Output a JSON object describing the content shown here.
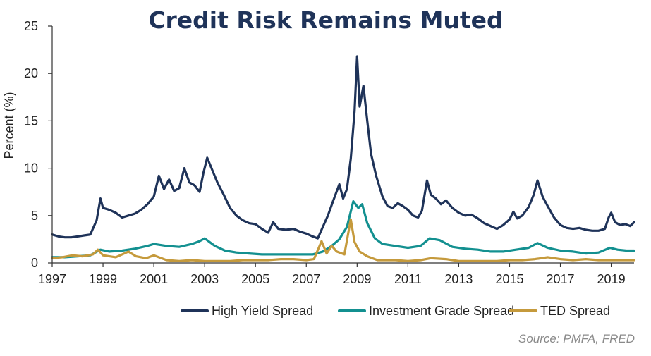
{
  "chart_data": {
    "type": "line",
    "title": "Credit Risk Remains Muted",
    "xlabel": "",
    "ylabel": "Percent (%)",
    "xlim": [
      1997,
      2019.9
    ],
    "ylim": [
      0,
      25
    ],
    "x_ticks": [
      "1997",
      "1999",
      "2001",
      "2003",
      "2005",
      "2007",
      "2009",
      "2011",
      "2013",
      "2015",
      "2017",
      "2019"
    ],
    "y_ticks": [
      "0",
      "5",
      "10",
      "15",
      "20",
      "25"
    ],
    "grid": false,
    "legend_position": "bottom-right",
    "source": "Source: PMFA, FRED",
    "colors": {
      "title": "#1f3359",
      "axis": "#333333"
    },
    "series": [
      {
        "name": "High Yield Spread",
        "color": "#1f3359",
        "points": [
          [
            1997.0,
            3.0
          ],
          [
            1997.25,
            2.8
          ],
          [
            1997.5,
            2.7
          ],
          [
            1997.75,
            2.7
          ],
          [
            1998.0,
            2.8
          ],
          [
            1998.25,
            2.9
          ],
          [
            1998.5,
            3.0
          ],
          [
            1998.75,
            4.5
          ],
          [
            1998.9,
            6.8
          ],
          [
            1999.0,
            5.8
          ],
          [
            1999.25,
            5.6
          ],
          [
            1999.5,
            5.3
          ],
          [
            1999.75,
            4.8
          ],
          [
            2000.0,
            5.0
          ],
          [
            2000.25,
            5.2
          ],
          [
            2000.5,
            5.6
          ],
          [
            2000.75,
            6.2
          ],
          [
            2001.0,
            7.0
          ],
          [
            2001.2,
            9.2
          ],
          [
            2001.4,
            7.8
          ],
          [
            2001.6,
            8.8
          ],
          [
            2001.8,
            7.6
          ],
          [
            2002.0,
            7.9
          ],
          [
            2002.2,
            10.0
          ],
          [
            2002.4,
            8.5
          ],
          [
            2002.6,
            8.2
          ],
          [
            2002.8,
            7.5
          ],
          [
            2002.95,
            9.5
          ],
          [
            2003.1,
            11.1
          ],
          [
            2003.3,
            9.8
          ],
          [
            2003.5,
            8.5
          ],
          [
            2003.75,
            7.2
          ],
          [
            2004.0,
            5.8
          ],
          [
            2004.25,
            5.0
          ],
          [
            2004.5,
            4.5
          ],
          [
            2004.75,
            4.2
          ],
          [
            2005.0,
            4.1
          ],
          [
            2005.25,
            3.6
          ],
          [
            2005.5,
            3.2
          ],
          [
            2005.7,
            4.3
          ],
          [
            2005.9,
            3.6
          ],
          [
            2006.2,
            3.5
          ],
          [
            2006.5,
            3.6
          ],
          [
            2006.75,
            3.3
          ],
          [
            2007.0,
            3.1
          ],
          [
            2007.25,
            2.8
          ],
          [
            2007.45,
            2.6
          ],
          [
            2007.65,
            3.8
          ],
          [
            2007.85,
            5.0
          ],
          [
            2008.05,
            6.5
          ],
          [
            2008.3,
            8.3
          ],
          [
            2008.45,
            6.8
          ],
          [
            2008.6,
            7.8
          ],
          [
            2008.75,
            11.0
          ],
          [
            2008.9,
            16.0
          ],
          [
            2009.0,
            21.8
          ],
          [
            2009.1,
            16.5
          ],
          [
            2009.25,
            18.7
          ],
          [
            2009.4,
            15.0
          ],
          [
            2009.55,
            11.5
          ],
          [
            2009.75,
            9.2
          ],
          [
            2010.0,
            7.0
          ],
          [
            2010.2,
            6.0
          ],
          [
            2010.4,
            5.8
          ],
          [
            2010.6,
            6.3
          ],
          [
            2010.8,
            6.0
          ],
          [
            2011.0,
            5.6
          ],
          [
            2011.2,
            5.0
          ],
          [
            2011.4,
            4.8
          ],
          [
            2011.55,
            5.5
          ],
          [
            2011.75,
            8.7
          ],
          [
            2011.9,
            7.2
          ],
          [
            2012.1,
            6.8
          ],
          [
            2012.3,
            6.2
          ],
          [
            2012.5,
            6.6
          ],
          [
            2012.75,
            5.8
          ],
          [
            2013.0,
            5.3
          ],
          [
            2013.25,
            5.0
          ],
          [
            2013.5,
            5.1
          ],
          [
            2013.75,
            4.7
          ],
          [
            2014.0,
            4.2
          ],
          [
            2014.25,
            3.9
          ],
          [
            2014.5,
            3.6
          ],
          [
            2014.75,
            4.0
          ],
          [
            2015.0,
            4.6
          ],
          [
            2015.15,
            5.4
          ],
          [
            2015.3,
            4.7
          ],
          [
            2015.5,
            5.0
          ],
          [
            2015.75,
            5.9
          ],
          [
            2015.95,
            7.2
          ],
          [
            2016.1,
            8.7
          ],
          [
            2016.3,
            7.0
          ],
          [
            2016.5,
            6.0
          ],
          [
            2016.75,
            4.8
          ],
          [
            2017.0,
            4.0
          ],
          [
            2017.25,
            3.7
          ],
          [
            2017.5,
            3.6
          ],
          [
            2017.75,
            3.7
          ],
          [
            2018.0,
            3.5
          ],
          [
            2018.25,
            3.4
          ],
          [
            2018.5,
            3.4
          ],
          [
            2018.75,
            3.6
          ],
          [
            2018.9,
            4.8
          ],
          [
            2019.0,
            5.3
          ],
          [
            2019.15,
            4.3
          ],
          [
            2019.35,
            4.0
          ],
          [
            2019.55,
            4.1
          ],
          [
            2019.75,
            3.9
          ],
          [
            2019.9,
            4.3
          ]
        ]
      },
      {
        "name": "Investment Grade Spread",
        "color": "#139090",
        "points": [
          [
            1997.0,
            0.6
          ],
          [
            1997.5,
            0.6
          ],
          [
            1998.0,
            0.7
          ],
          [
            1998.5,
            0.8
          ],
          [
            1998.9,
            1.4
          ],
          [
            1999.25,
            1.2
          ],
          [
            1999.75,
            1.3
          ],
          [
            2000.25,
            1.5
          ],
          [
            2000.75,
            1.8
          ],
          [
            2001.0,
            2.0
          ],
          [
            2001.5,
            1.8
          ],
          [
            2002.0,
            1.7
          ],
          [
            2002.5,
            2.0
          ],
          [
            2002.8,
            2.3
          ],
          [
            2003.0,
            2.6
          ],
          [
            2003.4,
            1.8
          ],
          [
            2003.8,
            1.3
          ],
          [
            2004.25,
            1.1
          ],
          [
            2004.75,
            1.0
          ],
          [
            2005.25,
            0.9
          ],
          [
            2005.75,
            0.9
          ],
          [
            2006.25,
            0.9
          ],
          [
            2006.75,
            0.9
          ],
          [
            2007.25,
            0.9
          ],
          [
            2007.65,
            1.2
          ],
          [
            2008.0,
            1.8
          ],
          [
            2008.3,
            2.5
          ],
          [
            2008.6,
            3.8
          ],
          [
            2008.85,
            6.5
          ],
          [
            2009.05,
            5.8
          ],
          [
            2009.2,
            6.2
          ],
          [
            2009.4,
            4.2
          ],
          [
            2009.7,
            2.6
          ],
          [
            2010.0,
            2.0
          ],
          [
            2010.5,
            1.8
          ],
          [
            2011.0,
            1.6
          ],
          [
            2011.5,
            1.8
          ],
          [
            2011.85,
            2.6
          ],
          [
            2012.25,
            2.4
          ],
          [
            2012.75,
            1.7
          ],
          [
            2013.25,
            1.5
          ],
          [
            2013.75,
            1.4
          ],
          [
            2014.25,
            1.2
          ],
          [
            2014.75,
            1.2
          ],
          [
            2015.25,
            1.4
          ],
          [
            2015.75,
            1.6
          ],
          [
            2016.1,
            2.1
          ],
          [
            2016.5,
            1.6
          ],
          [
            2017.0,
            1.3
          ],
          [
            2017.5,
            1.2
          ],
          [
            2018.0,
            1.0
          ],
          [
            2018.5,
            1.1
          ],
          [
            2018.95,
            1.6
          ],
          [
            2019.25,
            1.4
          ],
          [
            2019.6,
            1.3
          ],
          [
            2019.9,
            1.3
          ]
        ]
      },
      {
        "name": "TED Spread",
        "color": "#c59a3c",
        "points": [
          [
            1997.0,
            0.5
          ],
          [
            1997.4,
            0.6
          ],
          [
            1997.8,
            0.8
          ],
          [
            1998.2,
            0.7
          ],
          [
            1998.6,
            0.9
          ],
          [
            1998.8,
            1.4
          ],
          [
            1999.0,
            0.8
          ],
          [
            1999.5,
            0.6
          ],
          [
            2000.0,
            1.2
          ],
          [
            2000.3,
            0.7
          ],
          [
            2000.7,
            0.5
          ],
          [
            2001.0,
            0.8
          ],
          [
            2001.5,
            0.3
          ],
          [
            2002.0,
            0.2
          ],
          [
            2002.5,
            0.3
          ],
          [
            2003.0,
            0.2
          ],
          [
            2003.5,
            0.2
          ],
          [
            2004.0,
            0.2
          ],
          [
            2004.5,
            0.3
          ],
          [
            2005.0,
            0.3
          ],
          [
            2005.5,
            0.3
          ],
          [
            2006.0,
            0.4
          ],
          [
            2006.5,
            0.4
          ],
          [
            2007.0,
            0.3
          ],
          [
            2007.3,
            0.4
          ],
          [
            2007.6,
            2.3
          ],
          [
            2007.8,
            1.0
          ],
          [
            2008.0,
            1.8
          ],
          [
            2008.2,
            1.2
          ],
          [
            2008.5,
            0.9
          ],
          [
            2008.75,
            4.6
          ],
          [
            2008.9,
            2.2
          ],
          [
            2009.1,
            1.2
          ],
          [
            2009.4,
            0.7
          ],
          [
            2009.8,
            0.3
          ],
          [
            2010.5,
            0.3
          ],
          [
            2011.0,
            0.2
          ],
          [
            2011.5,
            0.3
          ],
          [
            2011.9,
            0.5
          ],
          [
            2012.5,
            0.4
          ],
          [
            2013.0,
            0.2
          ],
          [
            2013.5,
            0.2
          ],
          [
            2014.0,
            0.2
          ],
          [
            2014.5,
            0.2
          ],
          [
            2015.0,
            0.3
          ],
          [
            2015.5,
            0.3
          ],
          [
            2016.0,
            0.4
          ],
          [
            2016.5,
            0.6
          ],
          [
            2017.0,
            0.4
          ],
          [
            2017.5,
            0.3
          ],
          [
            2018.0,
            0.4
          ],
          [
            2018.5,
            0.3
          ],
          [
            2019.0,
            0.3
          ],
          [
            2019.5,
            0.3
          ],
          [
            2019.9,
            0.3
          ]
        ]
      }
    ]
  }
}
